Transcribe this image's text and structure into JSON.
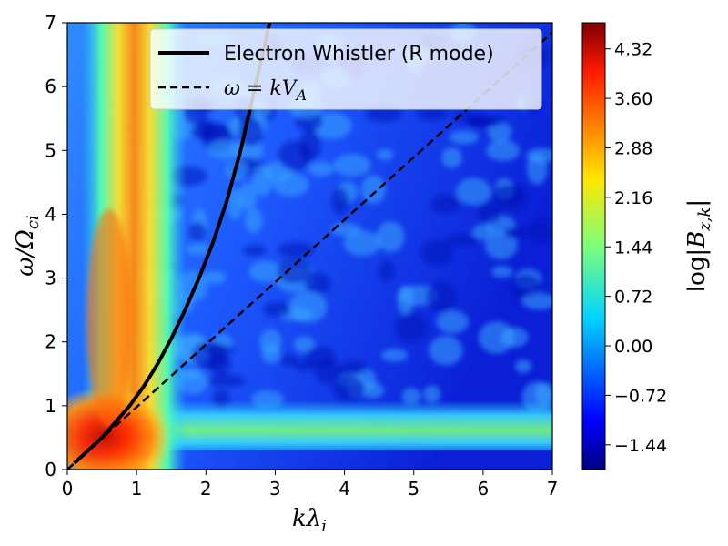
{
  "chart_data": {
    "type": "heatmap",
    "title": "",
    "xlabel": "kλi",
    "ylabel": "ω/Ωci",
    "xlim": [
      0,
      7
    ],
    "ylim": [
      0,
      7
    ],
    "xticks": [
      0,
      1,
      2,
      3,
      4,
      5,
      6,
      7
    ],
    "yticks": [
      0,
      1,
      2,
      3,
      4,
      5,
      6,
      7
    ],
    "colorbar": {
      "label": "log|Bz,k|",
      "range": [
        -1.8,
        4.7
      ],
      "ticks": [
        -1.44,
        -0.72,
        0.0,
        0.72,
        1.44,
        2.16,
        2.88,
        3.6,
        4.32
      ],
      "tick_labels": [
        "−1.44",
        "−0.72",
        "0.00",
        "0.72",
        "1.44",
        "2.16",
        "2.88",
        "3.60",
        "4.32"
      ],
      "colormap": "jet"
    },
    "heatmap_description": {
      "dominant_ridge_x": 0.6,
      "low_frequency_band_y": [
        0.3,
        1.0
      ],
      "background_level": -1.0
    },
    "series": [
      {
        "name": "Electron Whistler (R mode)",
        "style": "solid",
        "color": "#000000",
        "x": [
          0.1,
          0.3,
          0.5,
          0.7,
          0.9,
          1.1,
          1.3,
          1.5,
          1.7,
          1.9,
          2.1,
          2.3,
          2.5,
          2.7,
          2.92
        ],
        "y": [
          0.1,
          0.3,
          0.5,
          0.75,
          1.0,
          1.3,
          1.65,
          2.05,
          2.5,
          3.0,
          3.55,
          4.2,
          5.0,
          5.95,
          7.0
        ]
      },
      {
        "name": "ω = kVA",
        "style": "dashed",
        "color": "#000000",
        "x": [
          0,
          7
        ],
        "y": [
          0,
          6.85
        ]
      }
    ],
    "legend": {
      "position": "top-right",
      "entries": [
        {
          "label": "Electron Whistler (R mode)"
        },
        {
          "label": "ω = kVA"
        }
      ]
    }
  }
}
